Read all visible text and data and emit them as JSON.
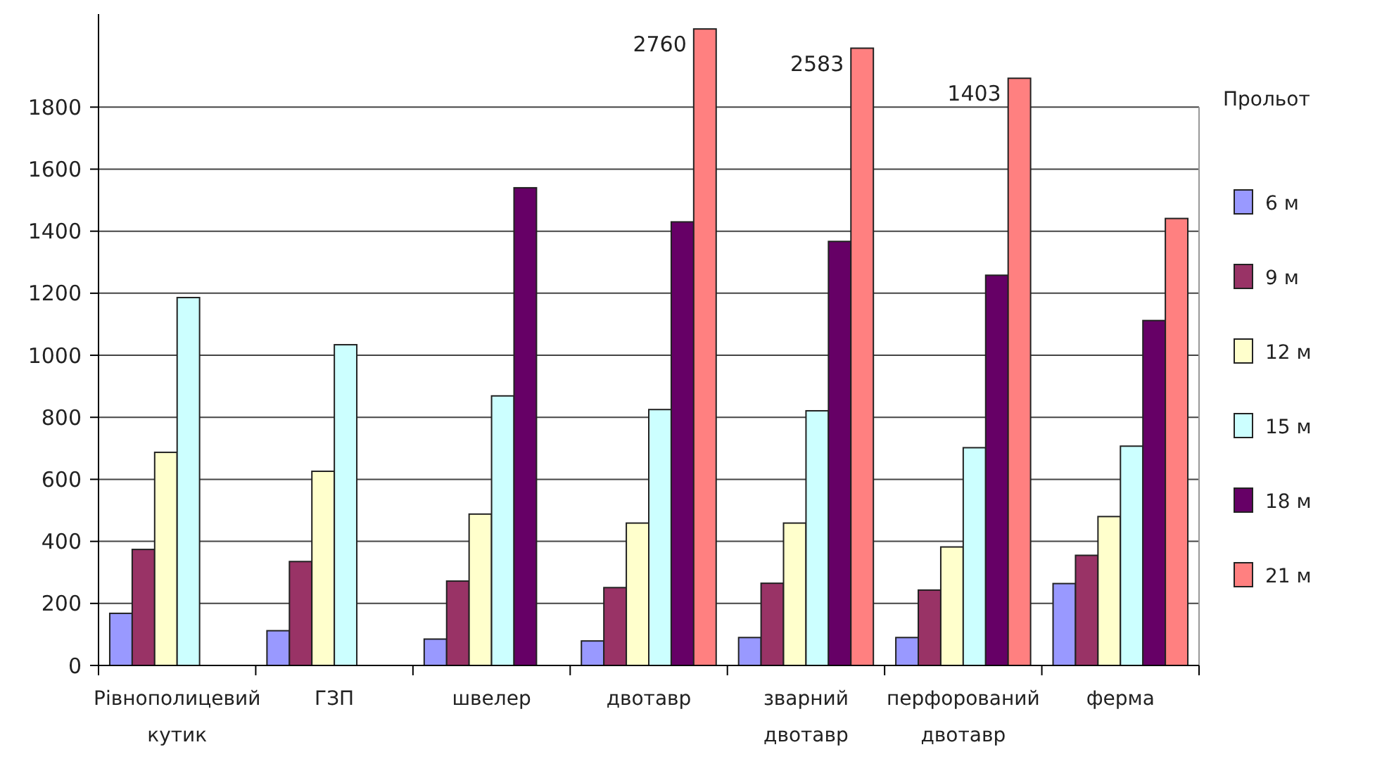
{
  "chart_data": {
    "type": "bar",
    "legend_title": "Прольот",
    "legend": "right",
    "grid": "y",
    "categories": [
      "Рівнополицевий кутик",
      "ГЗП",
      "швелер",
      "двотавр",
      "зварний двотавр",
      "перфорований двотавр",
      "ферма"
    ],
    "ylim": [
      0,
      2100
    ],
    "yticks": [
      0,
      200,
      400,
      600,
      800,
      1000,
      1200,
      1400,
      1600,
      1800
    ],
    "series": [
      {
        "name": "6 м",
        "color": "#9999ff",
        "values": [
          168,
          112,
          85,
          79,
          90,
          90,
          264
        ]
      },
      {
        "name": "9 м",
        "color": "#993366",
        "values": [
          374,
          335,
          272,
          251,
          265,
          243,
          355
        ]
      },
      {
        "name": "12 м",
        "color": "#ffffcc",
        "values": [
          687,
          626,
          488,
          459,
          459,
          382,
          480
        ]
      },
      {
        "name": "15 м",
        "color": "#ccffff",
        "values": [
          1186,
          1034,
          869,
          825,
          821,
          702,
          707
        ]
      },
      {
        "name": "18 м",
        "color": "#660066",
        "values": [
          null,
          null,
          1540,
          1430,
          1367,
          1258,
          1112
        ]
      },
      {
        "name": "21 м",
        "color": "#ff8080",
        "values": [
          null,
          null,
          null,
          2052,
          1990,
          1893,
          1441
        ]
      }
    ],
    "annotations": [
      "2760",
      "2583",
      "1403"
    ]
  }
}
